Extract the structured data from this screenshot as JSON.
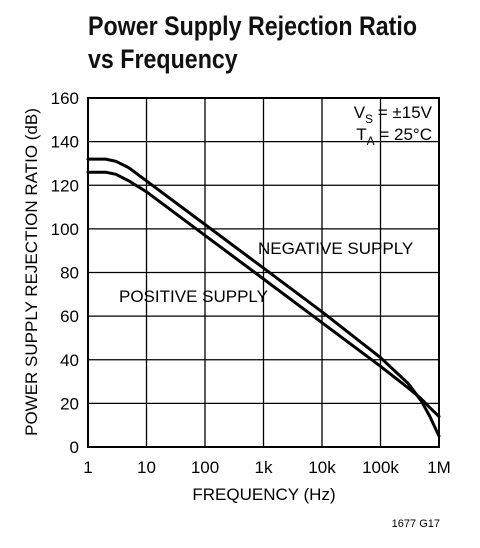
{
  "chart_data": {
    "type": "line",
    "title_line1": "Power Supply Rejection Ratio",
    "title_line2": "vs Frequency",
    "xlabel": "FREQUENCY (Hz)",
    "ylabel": "POWER SUPPLY REJECTION RATIO (dB)",
    "x_scale": "log",
    "xlim": [
      1,
      1000000
    ],
    "ylim": [
      0,
      160
    ],
    "grid": true,
    "x_ticks": [
      1,
      10,
      100,
      1000,
      10000,
      100000,
      1000000
    ],
    "x_tick_labels": [
      "1",
      "10",
      "100",
      "1k",
      "10k",
      "100k",
      "1M"
    ],
    "y_ticks": [
      0,
      20,
      40,
      60,
      80,
      100,
      120,
      140,
      160
    ],
    "y_tick_labels": [
      "0",
      "20",
      "40",
      "60",
      "80",
      "100",
      "120",
      "140",
      "160"
    ],
    "conditions": {
      "vs_main": "V",
      "vs_sub": "S",
      "vs_rest": " = ±15V",
      "ta_main": "T",
      "ta_sub": "A",
      "ta_rest": " = 25°C"
    },
    "series": [
      {
        "name": "NEGATIVE SUPPLY",
        "x": [
          1,
          2,
          3,
          5,
          10,
          100,
          1000,
          10000,
          100000,
          300000,
          500000,
          700000,
          1000000
        ],
        "y": [
          132,
          132,
          131,
          128,
          122,
          102,
          82,
          62,
          41,
          29,
          21,
          14,
          5
        ]
      },
      {
        "name": "POSITIVE SUPPLY",
        "x": [
          1,
          2,
          3,
          5,
          10,
          100,
          1000,
          10000,
          100000,
          300000,
          500000,
          700000,
          1000000
        ],
        "y": [
          126,
          126,
          125,
          122,
          117,
          97,
          77,
          57,
          37,
          27,
          22,
          18,
          14
        ]
      }
    ],
    "annotations": [
      "NEGATIVE SUPPLY",
      "POSITIVE SUPPLY"
    ],
    "figure_id": "1677 G17"
  }
}
